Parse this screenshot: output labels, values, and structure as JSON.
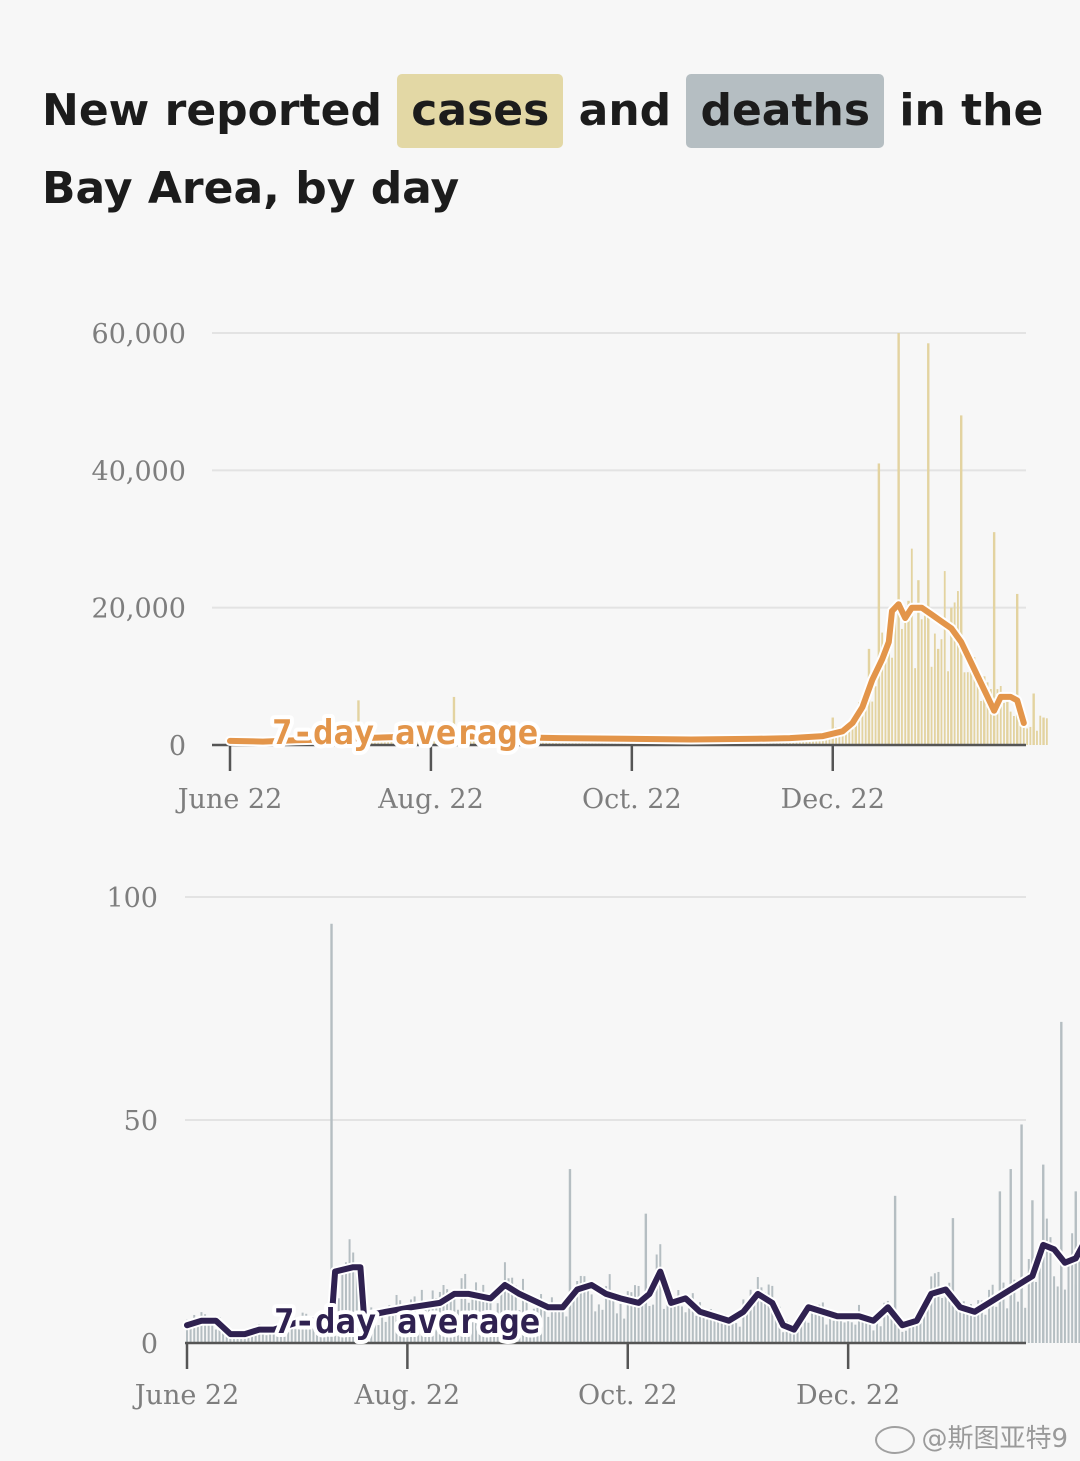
{
  "title": {
    "part1": "New reported",
    "cases": "cases",
    "and": "and",
    "deaths": "deaths",
    "part2": "in the Bay Area, by day",
    "cases_highlight_color": "#e3d8a5",
    "deaths_highlight_color": "#b5bec2"
  },
  "watermark": "@斯图亚特9",
  "chart_data": [
    {
      "type": "bar",
      "series_name": "cases",
      "ylim": [
        0,
        60000
      ],
      "yticks": [
        {
          "v": 0,
          "label": "0"
        },
        {
          "v": 20000,
          "label": "20,000"
        },
        {
          "v": 40000,
          "label": "40,000"
        },
        {
          "v": 60000,
          "label": "60,000"
        }
      ],
      "xticks": [
        "June 22",
        "Aug. 22",
        "Oct. 22",
        "Dec. 22"
      ],
      "x_range_days": [
        0,
        240
      ],
      "bar_color": "#e3d3a0",
      "avg_color": "#e3954a",
      "avg_label": "7-day average",
      "daily_spikes": [
        {
          "day": 39,
          "value": 6500
        },
        {
          "day": 68,
          "value": 7000
        },
        {
          "day": 183,
          "value": 4000
        },
        {
          "day": 190,
          "value": 4200
        },
        {
          "day": 194,
          "value": 14000
        },
        {
          "day": 197,
          "value": 41000
        },
        {
          "day": 200,
          "value": 18000
        },
        {
          "day": 203,
          "value": 60000
        },
        {
          "day": 206,
          "value": 21000
        },
        {
          "day": 209,
          "value": 24000
        },
        {
          "day": 212,
          "value": 58500
        },
        {
          "day": 215,
          "value": 14000
        },
        {
          "day": 219,
          "value": 20000
        },
        {
          "day": 222,
          "value": 48000
        },
        {
          "day": 225,
          "value": 13000
        },
        {
          "day": 229,
          "value": 10000
        },
        {
          "day": 232,
          "value": 31000
        },
        {
          "day": 236,
          "value": 7000
        },
        {
          "day": 239,
          "value": 22000
        },
        {
          "day": 244,
          "value": 7500
        },
        {
          "day": 247,
          "value": 4000
        }
      ],
      "avg": [
        [
          0,
          600
        ],
        [
          10,
          500
        ],
        [
          20,
          700
        ],
        [
          30,
          800
        ],
        [
          40,
          1000
        ],
        [
          60,
          1300
        ],
        [
          80,
          1200
        ],
        [
          100,
          1000
        ],
        [
          120,
          900
        ],
        [
          140,
          800
        ],
        [
          160,
          900
        ],
        [
          170,
          1000
        ],
        [
          180,
          1300
        ],
        [
          186,
          2000
        ],
        [
          189,
          3200
        ],
        [
          192,
          5500
        ],
        [
          195,
          9500
        ],
        [
          198,
          12500
        ],
        [
          200,
          15000
        ],
        [
          201,
          19500
        ],
        [
          203,
          20500
        ],
        [
          205,
          18500
        ],
        [
          207,
          20000
        ],
        [
          210,
          20000
        ],
        [
          213,
          19000
        ],
        [
          216,
          18000
        ],
        [
          219,
          17000
        ],
        [
          222,
          15000
        ],
        [
          225,
          12000
        ],
        [
          228,
          9000
        ],
        [
          230,
          7000
        ],
        [
          232,
          5000
        ],
        [
          234,
          7000
        ],
        [
          237,
          7000
        ],
        [
          239,
          6500
        ],
        [
          241,
          3200
        ]
      ]
    },
    {
      "type": "bar",
      "series_name": "deaths",
      "ylim": [
        0,
        100
      ],
      "yticks": [
        {
          "v": 0,
          "label": "0"
        },
        {
          "v": 50,
          "label": "50"
        },
        {
          "v": 100,
          "label": "100"
        }
      ],
      "xticks": [
        "June 22",
        "Aug. 22",
        "Oct. 22",
        "Dec. 22"
      ],
      "x_range_days": [
        0,
        240
      ],
      "bar_color": "#b5bec2",
      "avg_color": "#2f2150",
      "avg_label": "7-day average",
      "daily_spikes": [
        {
          "day": 40,
          "value": 94
        },
        {
          "day": 106,
          "value": 39
        },
        {
          "day": 127,
          "value": 29
        },
        {
          "day": 196,
          "value": 33
        },
        {
          "day": 212,
          "value": 28
        },
        {
          "day": 225,
          "value": 34
        },
        {
          "day": 228,
          "value": 39
        },
        {
          "day": 231,
          "value": 49
        },
        {
          "day": 234,
          "value": 32
        },
        {
          "day": 237,
          "value": 40
        },
        {
          "day": 242,
          "value": 72
        },
        {
          "day": 246,
          "value": 34
        }
      ],
      "avg": [
        [
          0,
          4
        ],
        [
          4,
          5
        ],
        [
          8,
          5
        ],
        [
          12,
          2
        ],
        [
          16,
          2
        ],
        [
          20,
          3
        ],
        [
          24,
          3
        ],
        [
          28,
          4
        ],
        [
          32,
          5
        ],
        [
          36,
          5
        ],
        [
          40,
          5
        ],
        [
          41,
          16
        ],
        [
          46,
          17
        ],
        [
          48,
          17
        ],
        [
          49,
          6
        ],
        [
          55,
          7
        ],
        [
          62,
          8
        ],
        [
          70,
          9
        ],
        [
          74,
          11
        ],
        [
          78,
          11
        ],
        [
          84,
          10
        ],
        [
          88,
          13
        ],
        [
          92,
          11
        ],
        [
          100,
          8
        ],
        [
          104,
          8
        ],
        [
          108,
          12
        ],
        [
          112,
          13
        ],
        [
          116,
          11
        ],
        [
          120,
          10
        ],
        [
          125,
          9
        ],
        [
          128,
          11
        ],
        [
          131,
          16
        ],
        [
          134,
          9
        ],
        [
          138,
          10
        ],
        [
          142,
          7
        ],
        [
          146,
          6
        ],
        [
          150,
          5
        ],
        [
          154,
          7
        ],
        [
          158,
          11
        ],
        [
          162,
          9
        ],
        [
          165,
          4
        ],
        [
          168,
          3
        ],
        [
          172,
          8
        ],
        [
          176,
          7
        ],
        [
          180,
          6
        ],
        [
          186,
          6
        ],
        [
          190,
          5
        ],
        [
          194,
          8
        ],
        [
          198,
          4
        ],
        [
          202,
          5
        ],
        [
          206,
          11
        ],
        [
          210,
          12
        ],
        [
          214,
          8
        ],
        [
          218,
          7
        ],
        [
          222,
          9
        ],
        [
          226,
          11
        ],
        [
          230,
          13
        ],
        [
          234,
          15
        ],
        [
          237,
          22
        ],
        [
          240,
          21
        ],
        [
          243,
          18
        ],
        [
          246,
          19
        ],
        [
          248,
          22
        ],
        [
          250,
          21
        ]
      ]
    }
  ]
}
